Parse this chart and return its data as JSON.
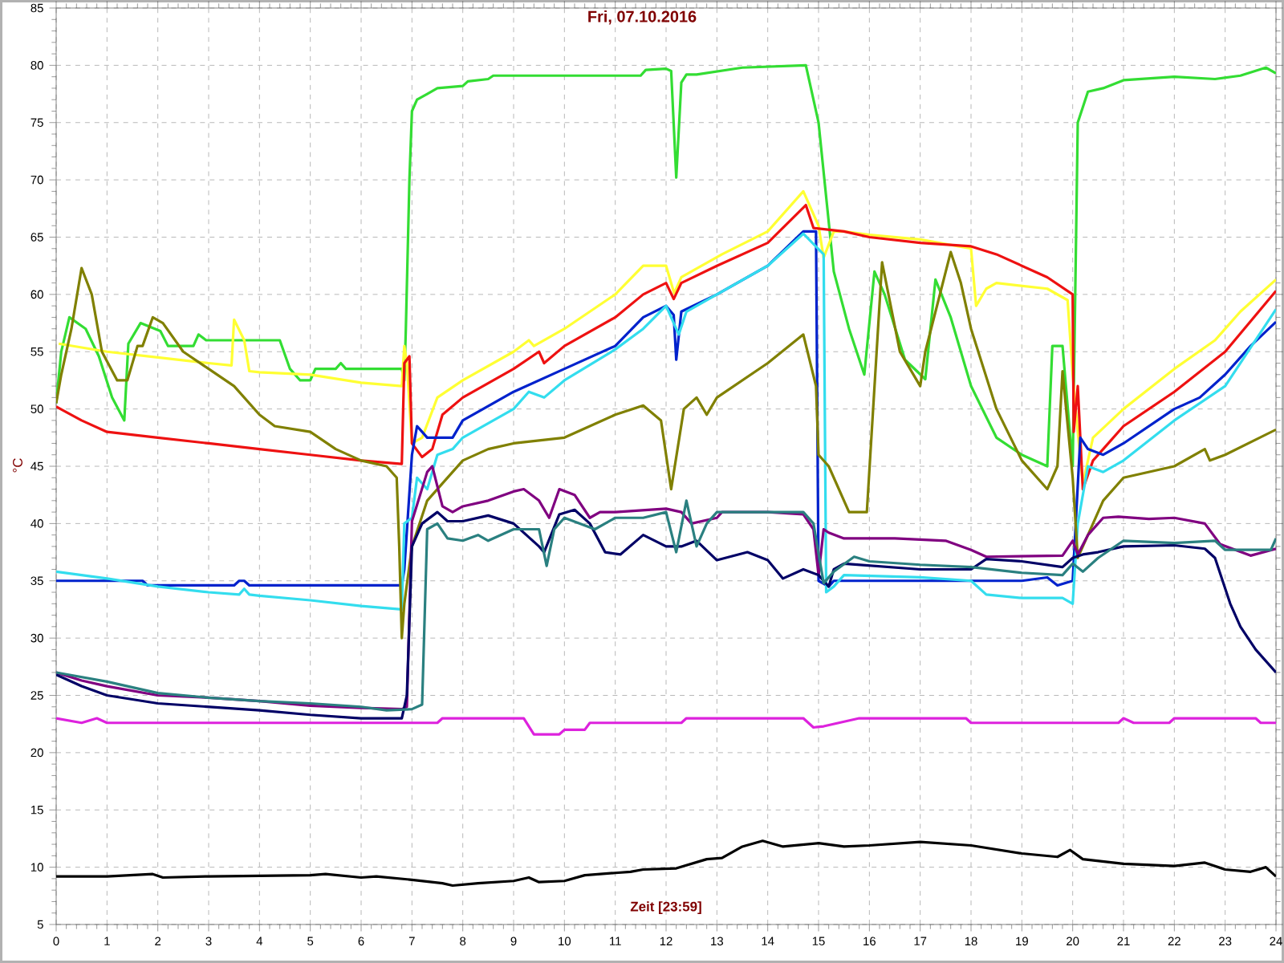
{
  "chart_data": {
    "type": "line",
    "title": "Fri, 07.10.2016",
    "xlabel": "Zeit [23:59]",
    "ylabel": "°C",
    "xlim": [
      0,
      24
    ],
    "xticks": [
      0,
      1,
      2,
      3,
      4,
      5,
      6,
      7,
      8,
      9,
      10,
      11,
      12,
      13,
      14,
      15,
      16,
      17,
      18,
      19,
      20,
      21,
      22,
      23,
      24
    ],
    "ylim": [
      5,
      85
    ],
    "yticks": [
      5,
      10,
      15,
      20,
      25,
      30,
      35,
      40,
      45,
      50,
      55,
      60,
      65,
      70,
      75,
      80,
      85
    ],
    "grid": true,
    "line_style": "solid",
    "series": [
      {
        "color": "#33dd33",
        "x": [
          0,
          0.1,
          0.26,
          0.58,
          0.84,
          1.1,
          1.34,
          1.42,
          1.66,
          2.05,
          2.2,
          2.7,
          2.8,
          2.95,
          4.4,
          4.6,
          4.8,
          5.0,
          5.1,
          5.5,
          5.6,
          5.7,
          6.8,
          6.85,
          6.88,
          6.95,
          7.0,
          7.1,
          7.3,
          7.5,
          8.0,
          8.1,
          8.5,
          8.6,
          11.5,
          11.6,
          12.0,
          12.1,
          12.2,
          12.3,
          12.4,
          12.6,
          13.5,
          14.75,
          15.0,
          15.3,
          15.6,
          15.9,
          16.1,
          16.3,
          16.7,
          17.1,
          17.3,
          17.6,
          18.0,
          18.5,
          19.0,
          19.5,
          19.6,
          19.8,
          20.0,
          20.1,
          20.3,
          20.6,
          21.0,
          22.0,
          22.8,
          23.3,
          23.8,
          24.0
        ],
        "values": [
          50.5,
          55,
          58,
          57,
          54.6,
          51,
          49,
          55.7,
          57.5,
          56.8,
          55.5,
          55.5,
          56.5,
          56,
          56,
          53.5,
          52.5,
          52.5,
          53.5,
          53.5,
          54,
          53.5,
          53.5,
          52.5,
          57,
          70,
          76,
          77,
          77.5,
          78,
          78.2,
          78.6,
          78.8,
          79.1,
          79.1,
          79.6,
          79.7,
          79.5,
          70.2,
          78.5,
          79.2,
          79.2,
          79.8,
          80,
          75,
          62,
          57,
          53,
          62,
          60,
          54.3,
          52.6,
          61.3,
          58,
          52,
          47.5,
          46,
          45,
          55.5,
          55.5,
          45,
          75,
          77.7,
          78,
          78.7,
          79,
          78.8,
          79.1,
          79.8,
          79.3
        ]
      },
      {
        "color": "#ffff33",
        "x": [
          0.05,
          1,
          2,
          3,
          3.45,
          3.5,
          3.7,
          3.8,
          4,
          5,
          6,
          6.8,
          6.85,
          6.9,
          7.0,
          7.2,
          7.5,
          8,
          9,
          9.3,
          9.4,
          10,
          11,
          11.55,
          12,
          12.16,
          12.3,
          13.1,
          14,
          14.7,
          14.8,
          15.0,
          15.1,
          15.3,
          15.5,
          16,
          17,
          18.0,
          18.1,
          18.3,
          18.5,
          19.5,
          19.9,
          20.0,
          20.1,
          20.2,
          20.4,
          21,
          22,
          22.8,
          23.3,
          24
        ],
        "values": [
          55.7,
          55,
          54.5,
          54,
          53.8,
          57.8,
          56,
          53.3,
          53.2,
          53,
          52.3,
          52,
          55.5,
          54,
          47,
          47.5,
          51,
          52.5,
          55,
          56,
          55.5,
          57,
          60,
          62.5,
          62.5,
          60.1,
          61.5,
          63.5,
          65.5,
          69,
          68,
          66,
          63.2,
          65.5,
          65.5,
          65.2,
          64.8,
          64,
          59,
          60.5,
          61,
          60.5,
          59.5,
          53,
          48,
          43.5,
          47.5,
          50,
          53.5,
          56,
          58.5,
          61.3
        ]
      },
      {
        "color": "#ee1111",
        "x": [
          0,
          0.5,
          1,
          2,
          3,
          4,
          5,
          6,
          6.8,
          6.85,
          6.95,
          7.0,
          7.2,
          7.4,
          7.6,
          8,
          9,
          9.5,
          9.6,
          10,
          11,
          11.55,
          12,
          12.15,
          12.3,
          13,
          14,
          14.75,
          14.9,
          15.5,
          16,
          17,
          18,
          18.5,
          19.5,
          20,
          20.02,
          20.1,
          20.2,
          20.4,
          20.6,
          21,
          22,
          23,
          24
        ],
        "values": [
          50.2,
          49,
          48,
          47.5,
          47,
          46.5,
          46,
          45.5,
          45.2,
          54,
          54.6,
          47,
          45.8,
          46.5,
          49.5,
          51,
          53.5,
          55,
          54,
          55.5,
          58,
          60,
          61,
          59.6,
          61,
          62.5,
          64.5,
          67.8,
          65.8,
          65.5,
          65,
          64.5,
          64.2,
          63.5,
          61.5,
          60,
          48,
          52,
          43,
          45.5,
          46.5,
          48.5,
          51.5,
          55,
          60.3
        ]
      },
      {
        "color": "#0022cc",
        "x": [
          0,
          1.7,
          1.8,
          3.5,
          3.6,
          3.7,
          3.8,
          6.8,
          6.85,
          7.0,
          7.1,
          7.2,
          7.3,
          7.8,
          8,
          9,
          10,
          11,
          11.55,
          12,
          12.15,
          12.2,
          12.3,
          13,
          14,
          14.7,
          14.95,
          15.0,
          15.2,
          15.3,
          19,
          19.5,
          19.7,
          20.0,
          20.15,
          20.3,
          20.6,
          21,
          22,
          22.5,
          23,
          23.5,
          24
        ],
        "values": [
          35,
          35,
          34.6,
          34.6,
          35,
          35,
          34.6,
          34.6,
          36,
          46,
          48.5,
          48,
          47.5,
          47.5,
          49,
          51.5,
          53.5,
          55.5,
          58,
          59,
          58.2,
          54.3,
          58.5,
          60,
          62.5,
          65.5,
          65.5,
          35,
          34.5,
          35,
          35,
          35.3,
          34.6,
          35,
          47.5,
          46.5,
          46,
          47,
          50,
          51,
          53,
          55.5,
          57.6
        ]
      },
      {
        "color": "#33ddee",
        "x": [
          0,
          1,
          2,
          3,
          3.6,
          3.7,
          3.8,
          4,
          5,
          6,
          6.8,
          6.85,
          7.0,
          7.1,
          7.3,
          7.5,
          7.8,
          8,
          9,
          9.3,
          9.6,
          10,
          11,
          11.55,
          12,
          12.15,
          12.25,
          12.4,
          13,
          14,
          14.7,
          15.1,
          15.15,
          15.3,
          15.5,
          17,
          18,
          18.3,
          19,
          19.8,
          20.0,
          20.1,
          20.3,
          20.6,
          21,
          22,
          23,
          24
        ],
        "values": [
          35.8,
          35.2,
          34.5,
          34,
          33.8,
          34.3,
          33.8,
          33.7,
          33.3,
          32.8,
          32.5,
          40,
          40.5,
          44,
          43,
          46,
          46.5,
          47.5,
          50,
          51.5,
          51,
          52.5,
          55.2,
          57,
          59,
          57.5,
          56.5,
          58.5,
          60,
          62.5,
          65.3,
          63.5,
          34,
          34.5,
          35.5,
          35.3,
          35,
          33.8,
          33.5,
          33.5,
          33,
          40,
          45,
          44.5,
          45.5,
          49,
          52,
          58.7
        ]
      },
      {
        "color": "#808000",
        "x": [
          0,
          0.1,
          0.3,
          0.5,
          0.7,
          0.9,
          1.2,
          1.4,
          1.6,
          1.7,
          1.9,
          2.1,
          2.5,
          3,
          3.5,
          4,
          4.3,
          5,
          5.5,
          6,
          6.5,
          6.7,
          6.75,
          6.8,
          6.85,
          7.0,
          7.3,
          7.6,
          8,
          8.5,
          9,
          10,
          11,
          11.55,
          11.9,
          12.1,
          12.35,
          12.6,
          12.8,
          13,
          14,
          14.7,
          14.95,
          15.0,
          15.2,
          15.6,
          15.95,
          16.25,
          16.6,
          17.0,
          17.1,
          17.6,
          17.8,
          18,
          18.5,
          19,
          19.5,
          19.7,
          19.8,
          20.0,
          20.1,
          20.3,
          20.6,
          21,
          22,
          22.6,
          22.7,
          23,
          24
        ],
        "values": [
          50.5,
          53,
          57,
          62.3,
          60,
          55,
          52.5,
          52.5,
          55.5,
          55.5,
          58,
          57.5,
          55,
          53.5,
          52,
          49.5,
          48.5,
          48,
          46.5,
          45.5,
          45,
          44,
          38,
          30,
          33,
          38,
          42,
          43.5,
          45.5,
          46.5,
          47,
          47.5,
          49.5,
          50.3,
          49,
          43,
          50,
          51,
          49.5,
          51,
          54,
          56.5,
          52,
          46,
          45,
          41,
          41,
          62.8,
          55,
          52,
          55,
          63.7,
          61,
          57,
          50,
          45.5,
          43,
          45,
          53.3,
          44,
          37,
          39,
          42,
          44,
          45,
          46.5,
          45.5,
          46,
          48.2
        ]
      },
      {
        "color": "#800080",
        "x": [
          0,
          0.5,
          1,
          2,
          3,
          4,
          5,
          6,
          6.8,
          6.9,
          7.0,
          7.3,
          7.4,
          7.6,
          7.8,
          8,
          8.5,
          9,
          9.2,
          9.5,
          9.7,
          9.9,
          10.2,
          10.5,
          10.7,
          11,
          12,
          12.3,
          12.5,
          13,
          13.1,
          14,
          14.7,
          14.9,
          15.0,
          15.1,
          15.2,
          15.5,
          16.5,
          17.5,
          18.0,
          18.3,
          19.8,
          20.0,
          20.1,
          20.3,
          20.6,
          20.9,
          21.5,
          22,
          22.6,
          22.9,
          23.5,
          24
        ],
        "values": [
          27,
          26.3,
          25.8,
          25,
          24.8,
          24.5,
          24.1,
          23.9,
          23.8,
          24,
          40.2,
          44.5,
          45,
          41.5,
          41,
          41.5,
          42,
          42.8,
          43,
          42,
          40.5,
          43,
          42.5,
          40.5,
          41,
          41,
          41.3,
          41,
          40,
          40.5,
          41,
          41,
          40.8,
          39.5,
          35.5,
          39.5,
          39.2,
          38.7,
          38.7,
          38.5,
          37.7,
          37.1,
          37.2,
          38.5,
          37.3,
          39,
          40.5,
          40.6,
          40.4,
          40.5,
          40,
          38.2,
          37.2,
          37.8
        ]
      },
      {
        "color": "#000066",
        "x": [
          0,
          0.5,
          1,
          2,
          3,
          4,
          5,
          6,
          6.8,
          6.9,
          7.0,
          7.2,
          7.5,
          7.7,
          8,
          8.5,
          9,
          9.5,
          9.6,
          9.9,
          10.2,
          10.5,
          10.8,
          11.1,
          11.55,
          12,
          12.3,
          12.6,
          13,
          13.6,
          14,
          14.3,
          14.7,
          15.0,
          15.2,
          15.3,
          15.5,
          17,
          18.0,
          18.3,
          19.0,
          19.8,
          20.0,
          20.2,
          20.5,
          21,
          22,
          22.6,
          22.8,
          23.1,
          23.3,
          23.6,
          24
        ],
        "values": [
          26.8,
          25.8,
          25,
          24.3,
          24,
          23.7,
          23.3,
          23,
          23,
          25,
          38,
          40,
          41,
          40.2,
          40.2,
          40.7,
          40,
          38,
          37.5,
          40.8,
          41.2,
          40,
          37.5,
          37.3,
          39,
          38,
          38,
          38.5,
          36.8,
          37.5,
          36.8,
          35.2,
          36,
          35.5,
          34.5,
          36,
          36.5,
          36,
          36,
          36.9,
          36.7,
          36.2,
          37,
          37.3,
          37.5,
          38,
          38.1,
          37.8,
          37,
          33,
          31,
          29,
          27
        ]
      },
      {
        "color": "#2a8080",
        "x": [
          0,
          1,
          2,
          3,
          4,
          5,
          6,
          6.5,
          7.0,
          7.2,
          7.3,
          7.5,
          7.7,
          8,
          8.3,
          8.5,
          9,
          9.5,
          9.65,
          9.8,
          10,
          10.6,
          11,
          11.55,
          12,
          12.2,
          12.4,
          12.6,
          12.8,
          13,
          14,
          14.7,
          14.9,
          15.1,
          15.3,
          15.7,
          16,
          17,
          18,
          19,
          19.8,
          20,
          20.2,
          20.5,
          21,
          22,
          22.8,
          23,
          23.9,
          24
        ],
        "values": [
          27,
          26.2,
          25.2,
          24.8,
          24.5,
          24.3,
          24,
          23.7,
          23.8,
          24.2,
          39.5,
          40,
          38.7,
          38.5,
          39,
          38.5,
          39.5,
          39.5,
          36.3,
          39.5,
          40.5,
          39.5,
          40.5,
          40.5,
          41,
          37.5,
          42,
          38,
          40,
          41,
          41,
          41,
          40,
          34.8,
          35.8,
          37.1,
          36.7,
          36.4,
          36.2,
          35.7,
          35.5,
          36.5,
          35.8,
          37,
          38.5,
          38.3,
          38.5,
          37.7,
          37.7,
          38.7
        ]
      },
      {
        "color": "#dd22dd",
        "x": [
          0,
          0.5,
          0.8,
          1,
          7.5,
          7.6,
          9.2,
          9.4,
          9.9,
          10,
          10.4,
          10.5,
          12.3,
          12.4,
          14.7,
          14.9,
          15.1,
          15.8,
          17.9,
          18.0,
          20.9,
          21,
          21.2,
          21.9,
          22,
          23.6,
          23.7,
          24
        ],
        "values": [
          23,
          22.6,
          23,
          22.6,
          22.6,
          23,
          23,
          21.6,
          21.6,
          22,
          22,
          22.6,
          22.6,
          23,
          23,
          22.2,
          22.3,
          23,
          23,
          22.6,
          22.6,
          23,
          22.6,
          22.6,
          23,
          23,
          22.6,
          22.6
        ]
      },
      {
        "color": "#000000",
        "x": [
          0,
          1,
          1.9,
          2.1,
          3,
          5,
          5.3,
          6,
          6.3,
          7,
          7.6,
          7.8,
          8.3,
          9,
          9.3,
          9.5,
          10,
          10.4,
          11,
          11.3,
          11.55,
          12.2,
          12.5,
          12.8,
          13.1,
          13.5,
          13.9,
          14.3,
          15,
          15.5,
          16,
          17,
          18,
          19,
          19.7,
          19.95,
          20.2,
          21,
          22,
          22.6,
          23,
          23.5,
          23.8,
          24
        ],
        "values": [
          9.2,
          9.2,
          9.4,
          9.1,
          9.2,
          9.3,
          9.4,
          9.1,
          9.2,
          8.9,
          8.6,
          8.4,
          8.6,
          8.8,
          9.1,
          8.7,
          8.8,
          9.3,
          9.5,
          9.6,
          9.8,
          9.9,
          10.3,
          10.7,
          10.8,
          11.8,
          12.3,
          11.8,
          12.1,
          11.8,
          11.9,
          12.2,
          11.9,
          11.2,
          10.9,
          11.5,
          10.7,
          10.3,
          10.1,
          10.4,
          9.8,
          9.6,
          10,
          9.2
        ]
      }
    ]
  }
}
